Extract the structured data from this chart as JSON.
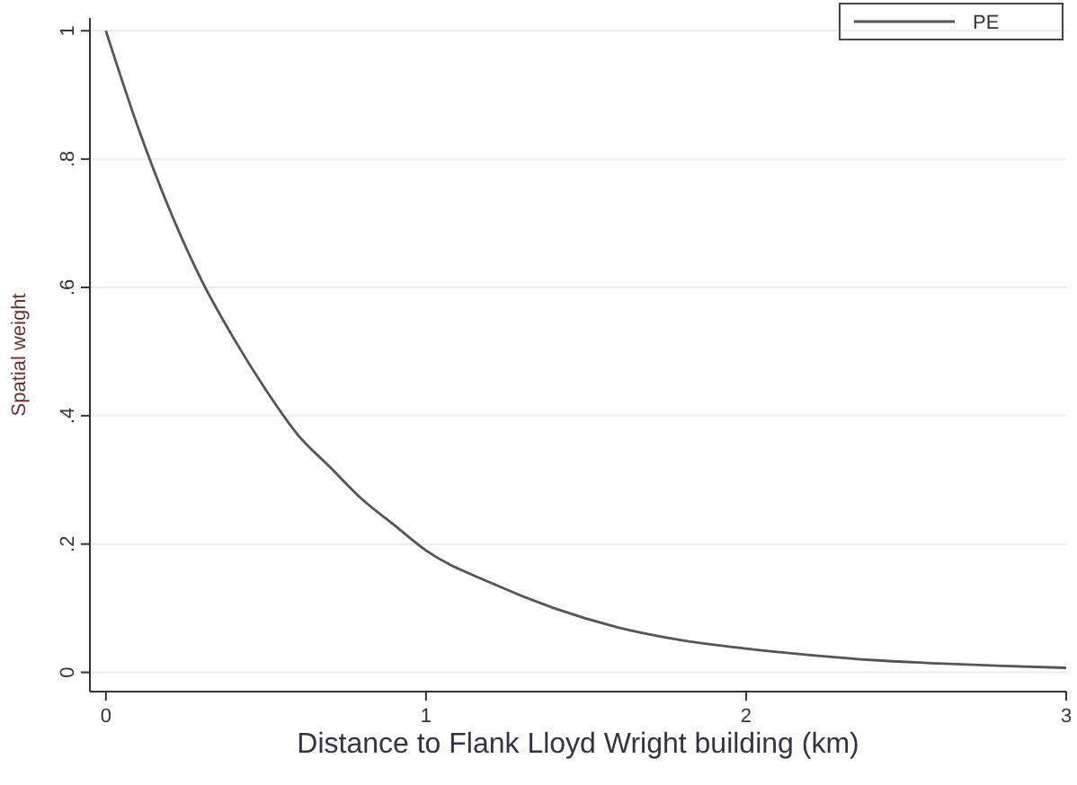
{
  "chart_data": {
    "type": "line",
    "xlabel": "Distance to Flank Lloyd Wright building (km)",
    "ylabel": "Spatial weight",
    "x": [
      0,
      0.1,
      0.2,
      0.3,
      0.4,
      0.5,
      0.6,
      0.7,
      0.8,
      0.9,
      1.0,
      1.2,
      1.4,
      1.6,
      1.8,
      2.0,
      2.2,
      2.4,
      2.6,
      2.8,
      3.0
    ],
    "series": [
      {
        "name": "PE",
        "color": "#555555",
        "values": [
          1,
          0.85,
          0.72,
          0.61,
          0.52,
          0.44,
          0.37,
          0.32,
          0.27,
          0.23,
          0.19,
          0.14,
          0.1,
          0.07,
          0.05,
          0.037,
          0.027,
          0.019,
          0.014,
          0.01,
          0.007
        ]
      }
    ],
    "xlim": [
      -0.05,
      3
    ],
    "xticks": [
      0,
      1,
      2,
      3
    ],
    "ylim": [
      -0.03,
      1.02
    ],
    "yticks": [
      0,
      {
        "value": 0.2,
        "label": ".2"
      },
      {
        "value": 0.4,
        "label": ".4"
      },
      {
        "value": 0.6,
        "label": ".6"
      },
      {
        "value": 0.8,
        "label": ".8"
      },
      1
    ],
    "grid": "y",
    "legend": "top right",
    "marker": "none",
    "line_style": "solid"
  }
}
